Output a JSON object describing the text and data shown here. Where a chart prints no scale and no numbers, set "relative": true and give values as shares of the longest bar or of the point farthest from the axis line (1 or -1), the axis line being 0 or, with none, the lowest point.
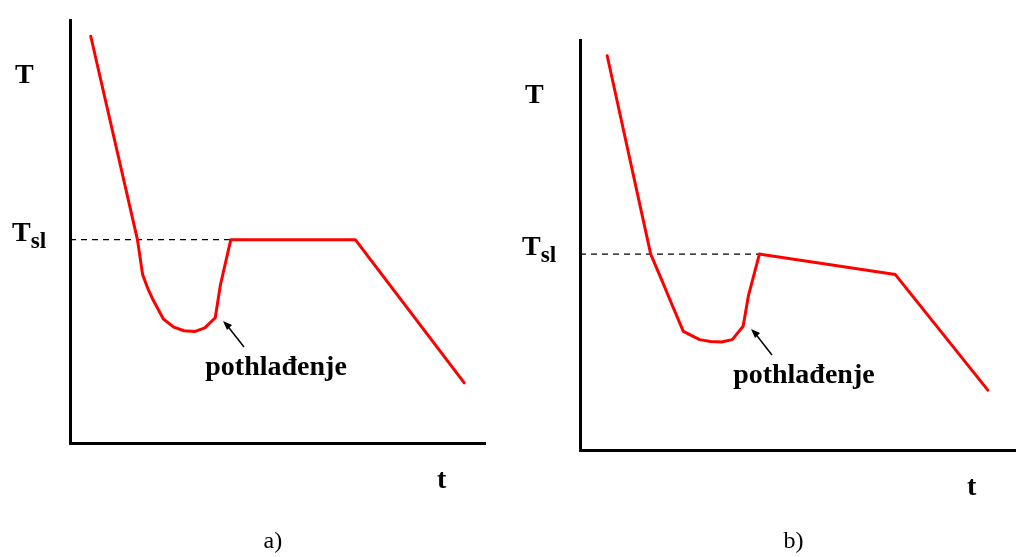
{
  "chart_data": [
    {
      "type": "line",
      "relative": true,
      "ylabel": "T",
      "xlabel": "t",
      "grid": false,
      "legend": false,
      "marker": "none",
      "line_style": "solid",
      "categories": [
        null,
        null,
        null,
        null,
        null,
        null,
        null,
        null,
        null,
        null,
        null,
        null,
        null,
        null,
        null,
        null,
        null,
        null,
        null,
        null,
        null,
        null,
        null,
        null,
        null,
        null,
        null,
        null,
        null,
        null,
        null,
        null,
        null,
        null,
        null,
        null,
        null,
        null,
        null,
        null,
        null,
        null,
        null,
        null,
        null,
        null,
        null,
        null,
        null,
        null,
        null,
        null,
        null,
        null,
        null,
        null,
        null,
        null,
        null,
        null,
        null,
        null,
        null,
        null,
        null,
        null,
        null,
        null,
        null,
        null,
        null,
        null,
        null,
        null,
        null,
        null,
        null,
        null,
        null,
        null,
        null
      ],
      "series": [
        {
          "color": "#ff0000",
          "values": [
            null,
            null,
            null,
            null,
            1.0,
            null,
            null,
            null,
            null,
            null,
            null,
            null,
            null,
            0.5,
            0.414,
            0.38,
            0.352,
            null,
            0.305,
            null,
            0.285,
            null,
            0.276,
            null,
            0.274,
            null,
            0.283,
            null,
            0.308,
            0.389,
            null,
            0.5,
            null,
            null,
            null,
            null,
            null,
            null,
            null,
            null,
            null,
            null,
            null,
            null,
            null,
            null,
            null,
            null,
            null,
            null,
            null,
            null,
            null,
            null,
            null,
            0.5,
            null,
            null,
            null,
            null,
            null,
            null,
            null,
            null,
            null,
            null,
            null,
            null,
            null,
            null,
            null,
            null,
            null,
            null,
            null,
            null,
            0.148,
            null,
            null,
            null,
            null
          ]
        }
      ],
      "ref_lines": [
        {
          "axis": "y",
          "value": 0.5,
          "label": "T$_{sl}$",
          "color": "#000000",
          "line_style": "dashed"
        }
      ],
      "annotations": [
        "pothlađenje",
        "a)"
      ]
    },
    {
      "type": "line",
      "relative": true,
      "ylabel": "T",
      "xlabel": "t",
      "grid": false,
      "legend": false,
      "marker": "none",
      "line_style": "solid",
      "categories": [
        null,
        null,
        null,
        null,
        null,
        null,
        null,
        null,
        null,
        null,
        null,
        null,
        null,
        null,
        null,
        null,
        null,
        null,
        null,
        null,
        null,
        null,
        null,
        null,
        null,
        null,
        null,
        null,
        null,
        null,
        null,
        null,
        null,
        null,
        null,
        null,
        null,
        null,
        null,
        null,
        null,
        null,
        null,
        null,
        null,
        null,
        null,
        null,
        null,
        null,
        null,
        null,
        null,
        null,
        null,
        null,
        null,
        null,
        null,
        null,
        null,
        null,
        null,
        null,
        null,
        null,
        null,
        null,
        null,
        null,
        null,
        null,
        null,
        null,
        null,
        null,
        null,
        null,
        null,
        null,
        null
      ],
      "series": [
        {
          "color": "#ff0000",
          "values": [
            null,
            null,
            null,
            null,
            null,
            1.0,
            null,
            null,
            null,
            null,
            null,
            null,
            null,
            0.497,
            null,
            0.432,
            null,
            0.366,
            null,
            0.301,
            null,
            null,
            0.28,
            null,
            0.275,
            null,
            0.274,
            null,
            0.28,
            null,
            0.314,
            0.393,
            null,
            0.497,
            null,
            null,
            null,
            null,
            null,
            null,
            null,
            null,
            null,
            null,
            null,
            null,
            null,
            null,
            null,
            null,
            null,
            null,
            null,
            null,
            null,
            null,
            null,
            null,
            0.445,
            null,
            null,
            null,
            null,
            null,
            null,
            null,
            null,
            null,
            null,
            null,
            null,
            null,
            null,
            null,
            null,
            0.152,
            null,
            null,
            null,
            null,
            null
          ]
        }
      ],
      "ref_lines": [
        {
          "axis": "y",
          "value": 0.497,
          "label": "T$_{sl}$",
          "color": "#000000",
          "line_style": "dashed"
        }
      ],
      "annotations": [
        "pothlađenje",
        "b)"
      ]
    }
  ]
}
